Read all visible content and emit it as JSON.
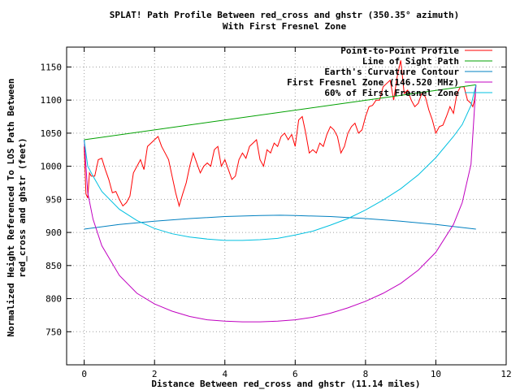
{
  "chart_data": {
    "type": "line",
    "title": "SPLAT! Path Profile Between red_cross and ghstr (350.35° azimuth)",
    "subtitle": "With First Fresnel Zone",
    "xlabel": "Distance Between red_cross and ghstr (11.14 miles)",
    "ylabel": "Normalized Height Referenced To LOS Path Between red_cross and ghstr (feet)",
    "xlim": [
      -0.5,
      12
    ],
    "ylim": [
      700,
      1180
    ],
    "xticks": [
      0,
      2,
      4,
      6,
      8,
      10,
      12
    ],
    "yticks": [
      750,
      800,
      850,
      900,
      950,
      1000,
      1050,
      1100,
      1150
    ],
    "grid": true,
    "legend_position": "top-right",
    "series": [
      {
        "name": "Point-to-Point Profile",
        "color": "#ff0000",
        "x": [
          0.0,
          0.05,
          0.1,
          0.15,
          0.2,
          0.3,
          0.4,
          0.5,
          0.6,
          0.7,
          0.8,
          0.9,
          1.0,
          1.1,
          1.2,
          1.3,
          1.4,
          1.5,
          1.6,
          1.7,
          1.8,
          1.9,
          2.0,
          2.1,
          2.2,
          2.3,
          2.4,
          2.5,
          2.6,
          2.7,
          2.8,
          2.9,
          3.0,
          3.1,
          3.2,
          3.3,
          3.4,
          3.5,
          3.6,
          3.7,
          3.8,
          3.9,
          4.0,
          4.1,
          4.2,
          4.3,
          4.4,
          4.5,
          4.6,
          4.7,
          4.8,
          4.9,
          5.0,
          5.1,
          5.2,
          5.3,
          5.4,
          5.5,
          5.6,
          5.7,
          5.8,
          5.9,
          6.0,
          6.1,
          6.2,
          6.3,
          6.4,
          6.5,
          6.6,
          6.7,
          6.8,
          6.9,
          7.0,
          7.1,
          7.2,
          7.3,
          7.4,
          7.5,
          7.6,
          7.7,
          7.8,
          7.9,
          8.0,
          8.1,
          8.2,
          8.3,
          8.4,
          8.5,
          8.6,
          8.7,
          8.8,
          8.9,
          9.0,
          9.1,
          9.2,
          9.3,
          9.4,
          9.5,
          9.6,
          9.7,
          9.8,
          9.9,
          10.0,
          10.1,
          10.2,
          10.3,
          10.4,
          10.5,
          10.6,
          10.7,
          10.8,
          10.9,
          11.0,
          11.05,
          11.1,
          11.14
        ],
        "y": [
          1030,
          958,
          952,
          990,
          985,
          985,
          1010,
          1012,
          995,
          980,
          960,
          962,
          950,
          940,
          945,
          955,
          990,
          1000,
          1010,
          995,
          1030,
          1035,
          1040,
          1045,
          1030,
          1020,
          1010,
          985,
          960,
          940,
          958,
          975,
          1000,
          1020,
          1005,
          990,
          1000,
          1005,
          1000,
          1025,
          1030,
          1000,
          1010,
          995,
          980,
          985,
          1010,
          1020,
          1012,
          1030,
          1035,
          1040,
          1010,
          1000,
          1025,
          1020,
          1035,
          1030,
          1045,
          1050,
          1040,
          1048,
          1030,
          1070,
          1075,
          1050,
          1020,
          1025,
          1020,
          1035,
          1030,
          1048,
          1060,
          1055,
          1045,
          1020,
          1030,
          1050,
          1060,
          1065,
          1050,
          1055,
          1075,
          1090,
          1092,
          1100,
          1100,
          1120,
          1125,
          1130,
          1100,
          1135,
          1160,
          1110,
          1115,
          1100,
          1090,
          1095,
          1110,
          1105,
          1085,
          1070,
          1050,
          1060,
          1062,
          1075,
          1090,
          1080,
          1110,
          1120,
          1120,
          1100,
          1095,
          1090,
          1100,
          1122
        ]
      },
      {
        "name": "Line of Sight Path",
        "color": "#00a000",
        "x": [
          0,
          11.14
        ],
        "y": [
          1040,
          1123
        ]
      },
      {
        "name": "Earth's Curvature Contour",
        "color": "#0080c0",
        "x": [
          0,
          1,
          2,
          3,
          4,
          5,
          5.57,
          6,
          7,
          8,
          9,
          10,
          11.14
        ],
        "y": [
          905,
          912,
          917,
          921,
          924,
          925.5,
          926,
          925.5,
          924,
          921,
          917,
          912,
          905
        ]
      },
      {
        "name": "First Fresnel Zone (146.520 MHz)",
        "color": "#c000c0",
        "x": [
          0,
          0.1,
          0.25,
          0.5,
          1,
          1.5,
          2,
          2.5,
          3,
          3.5,
          4,
          4.5,
          5,
          5.5,
          6,
          6.5,
          7,
          7.5,
          8,
          8.5,
          9,
          9.5,
          10,
          10.5,
          10.75,
          11,
          11.14
        ],
        "y": [
          1040,
          960,
          920,
          880,
          835,
          808,
          792,
          781,
          773,
          768,
          766,
          765,
          765,
          766,
          768,
          772,
          778,
          786,
          796,
          808,
          823,
          843,
          870,
          912,
          945,
          1003,
          1123
        ]
      },
      {
        "name": "60% of First Fresnel Zone",
        "color": "#00c0e0",
        "x": [
          0,
          0.1,
          0.25,
          0.5,
          1,
          1.5,
          2,
          2.5,
          3,
          3.5,
          4,
          4.5,
          5,
          5.5,
          6,
          6.5,
          7,
          7.5,
          8,
          8.5,
          9,
          9.5,
          10,
          10.5,
          10.75,
          11,
          11.14
        ],
        "y": [
          1040,
          1000,
          985,
          962,
          935,
          918,
          906,
          898,
          893,
          890,
          888,
          888,
          889,
          891,
          896,
          902,
          911,
          921,
          934,
          949,
          966,
          987,
          1013,
          1045,
          1063,
          1092,
          1123
        ]
      }
    ]
  }
}
